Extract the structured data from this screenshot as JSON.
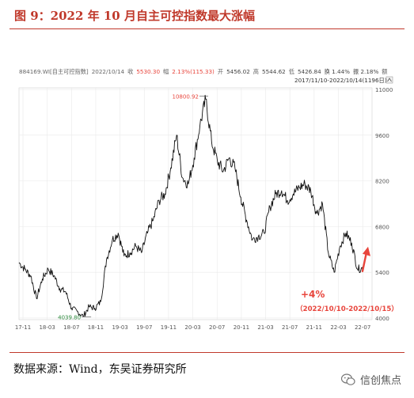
{
  "figure": {
    "title": "图 9：2022 年 10 月自主可控指数最大涨幅",
    "source": "数据来源：Wind，东吴证券研究所",
    "watermark": "信创焦点"
  },
  "colors": {
    "accent": "#c0392b",
    "up": "#e8453c",
    "line": "#111111",
    "grid": "#e9e9e9"
  },
  "chart_data": {
    "type": "line",
    "info_bar": [
      {
        "text": "884169.WI[自主可控指数]",
        "color": "#666666"
      },
      {
        "text": "2022/10/14",
        "color": "#666666"
      },
      {
        "text": "收",
        "color": "#666666"
      },
      {
        "text": "5530.30",
        "color": "#e8453c"
      },
      {
        "text": "幅",
        "color": "#666666"
      },
      {
        "text": "2.13%(115.33)",
        "color": "#e8453c"
      },
      {
        "text": "开",
        "color": "#666666"
      },
      {
        "text": "5456.02",
        "color": "#444444"
      },
      {
        "text": "高",
        "color": "#666666"
      },
      {
        "text": "5544.62",
        "color": "#444444"
      },
      {
        "text": "低",
        "color": "#666666"
      },
      {
        "text": "5426.84",
        "color": "#444444"
      },
      {
        "text": "换 1.44%",
        "color": "#444444"
      },
      {
        "text": "振 2.18%",
        "color": "#444444"
      },
      {
        "text": "额",
        "color": "#666666"
      }
    ],
    "range_label": "2017/11/10-2022/10/14(1196日)",
    "ylim": [
      3950,
      11050
    ],
    "y_ticks": [
      4000,
      5400,
      6800,
      8200,
      9600,
      11000
    ],
    "x_tick_labels": [
      "17-11",
      "18-03",
      "18-07",
      "18-11",
      "19-03",
      "19-07",
      "19-11",
      "20-03",
      "20-07",
      "20-11",
      "21-03",
      "21-07",
      "21-11",
      "22-03",
      "22-07"
    ],
    "max_label": "10800.92",
    "min_label": "4039.80",
    "annotation_pct": "+4%",
    "annotation_range": "（2022/10/10-2022/10/15）",
    "series": [
      {
        "x": [
          "2017-11",
          "2017-12",
          "2018-01",
          "2018-02",
          "2018-03",
          "2018-04",
          "2018-05",
          "2018-06",
          "2018-07",
          "2018-08",
          "2018-09",
          "2018-10",
          "2018-11",
          "2018-12",
          "2019-01",
          "2019-02",
          "2019-03",
          "2019-04",
          "2019-05",
          "2019-06",
          "2019-07",
          "2019-08",
          "2019-09",
          "2019-10",
          "2019-11",
          "2019-12",
          "2020-01",
          "2020-02",
          "2020-03",
          "2020-04",
          "2020-05",
          "2020-06",
          "2020-07",
          "2020-08",
          "2020-09",
          "2020-10",
          "2020-11",
          "2020-12",
          "2021-01",
          "2021-02",
          "2021-03",
          "2021-04",
          "2021-05",
          "2021-06",
          "2021-07",
          "2021-08",
          "2021-09",
          "2021-10",
          "2021-11",
          "2021-12",
          "2022-01",
          "2022-02",
          "2022-03",
          "2022-04",
          "2022-05",
          "2022-06",
          "2022-07",
          "2022-08",
          "2022-09",
          "2022-10"
        ],
        "values": [
          5700,
          5500,
          5300,
          4600,
          5200,
          5500,
          5300,
          4900,
          4800,
          4300,
          4200,
          4050,
          4350,
          4300,
          4500,
          5800,
          6400,
          6600,
          5900,
          6000,
          6200,
          6000,
          6600,
          7000,
          7600,
          7800,
          8600,
          9600,
          8300,
          8100,
          8900,
          9900,
          10700,
          9400,
          8800,
          8500,
          8900,
          8600,
          7700,
          7000,
          6400,
          6500,
          6600,
          7400,
          7800,
          7900,
          7600,
          7800,
          8000,
          8100,
          7900,
          7200,
          7500,
          6000,
          5400,
          6200,
          6600,
          6300,
          5500,
          5530
        ]
      }
    ]
  }
}
